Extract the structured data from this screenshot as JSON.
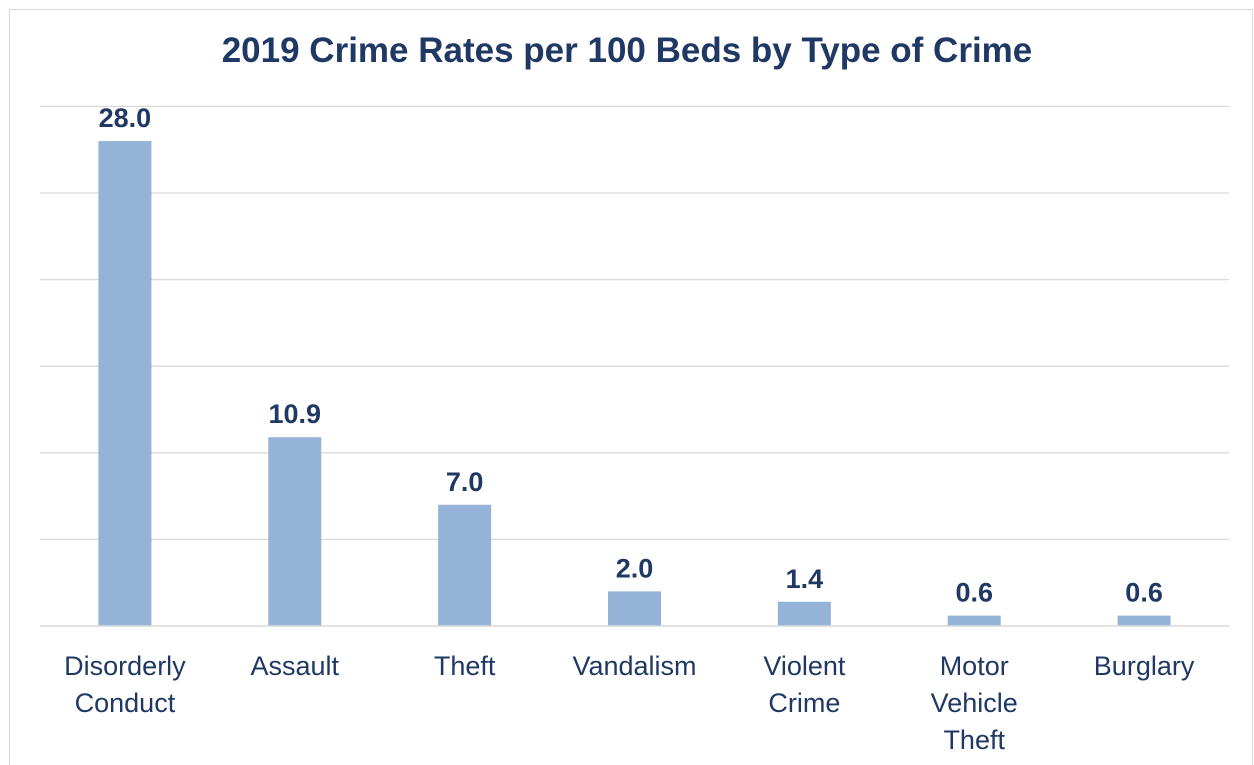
{
  "chart_data": {
    "type": "bar",
    "title": "2019 Crime Rates per 100 Beds by Type of Crime",
    "xlabel": "",
    "ylabel": "",
    "categories": [
      [
        "Disorderly",
        "Conduct"
      ],
      [
        "Assault"
      ],
      [
        "Theft"
      ],
      [
        "Vandalism"
      ],
      [
        "Violent",
        "Crime"
      ],
      [
        "Motor",
        "Vehicle",
        "Theft"
      ],
      [
        "Burglary"
      ]
    ],
    "values": [
      28.0,
      10.9,
      7.0,
      2.0,
      1.4,
      0.6,
      0.6
    ],
    "data_labels": [
      "28.0",
      "10.9",
      "7.0",
      "2.0",
      "1.4",
      "0.6",
      "0.6"
    ],
    "ylim": [
      0,
      30
    ],
    "gridlines": true,
    "y_axis_tick_labels_visible": false,
    "legend": "none",
    "colors": {
      "bar": "#95b3d7",
      "text": "#1f3864",
      "grid": "#d9d9d9"
    }
  }
}
